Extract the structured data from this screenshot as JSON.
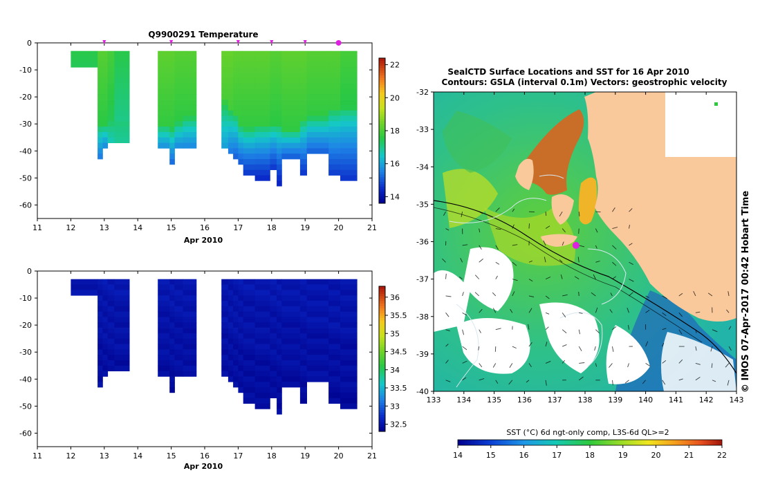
{
  "chart_data": [
    {
      "id": "temperature",
      "type": "heatmap",
      "title": "Q9900291  Temperature",
      "xlabel": "Apr 2010",
      "xlim": [
        11,
        21
      ],
      "ylim": [
        -65,
        0
      ],
      "xticks": [
        "11",
        "12",
        "13",
        "14",
        "15",
        "16",
        "17",
        "18",
        "19",
        "20",
        "21"
      ],
      "yticks": [
        "0",
        "-10",
        "-20",
        "-30",
        "-40",
        "-50",
        "-60"
      ],
      "colorbar": {
        "min": 13.6,
        "max": 22.4,
        "ticks": [
          "14",
          "16",
          "18",
          "20",
          "22"
        ]
      },
      "profile_markers_x": [
        13.0,
        15.0,
        17.0,
        18.0,
        19.0,
        20.0
      ],
      "profiles": [
        {
          "x0": 12.0,
          "x1": 12.8,
          "depth": 9,
          "surface": 17.6,
          "mixed_depth": 9,
          "bottom": 17.6
        },
        {
          "x0": 12.8,
          "x1": 12.95,
          "depth": 43,
          "surface": 18.2,
          "mixed_depth": 30,
          "bottom": 15.4
        },
        {
          "x0": 12.95,
          "x1": 13.1,
          "depth": 39,
          "surface": 18.2,
          "mixed_depth": 30,
          "bottom": 15.6
        },
        {
          "x0": 13.1,
          "x1": 13.3,
          "depth": 37,
          "surface": 18.0,
          "mixed_depth": 28,
          "bottom": 16.6
        },
        {
          "x0": 13.3,
          "x1": 13.75,
          "depth": 37,
          "surface": 17.6,
          "mixed_depth": 28,
          "bottom": 16.9
        },
        {
          "x0": 14.6,
          "x1": 14.95,
          "depth": 39,
          "surface": 18.3,
          "mixed_depth": 30,
          "bottom": 15.7
        },
        {
          "x0": 14.95,
          "x1": 15.1,
          "depth": 45,
          "surface": 18.3,
          "mixed_depth": 31,
          "bottom": 15.2
        },
        {
          "x0": 15.1,
          "x1": 15.35,
          "depth": 39,
          "surface": 18.2,
          "mixed_depth": 29,
          "bottom": 15.6
        },
        {
          "x0": 15.35,
          "x1": 15.75,
          "depth": 39,
          "surface": 18.2,
          "mixed_depth": 27,
          "bottom": 15.6
        },
        {
          "x0": 16.5,
          "x1": 16.7,
          "depth": 39,
          "surface": 18.4,
          "mixed_depth": 21,
          "bottom": 15.9
        },
        {
          "x0": 16.7,
          "x1": 16.85,
          "depth": 41,
          "surface": 18.4,
          "mixed_depth": 24,
          "bottom": 15.4
        },
        {
          "x0": 16.85,
          "x1": 17.0,
          "depth": 43,
          "surface": 18.3,
          "mixed_depth": 26,
          "bottom": 15.1
        },
        {
          "x0": 17.0,
          "x1": 17.15,
          "depth": 45,
          "surface": 18.3,
          "mixed_depth": 30,
          "bottom": 15.0
        },
        {
          "x0": 17.15,
          "x1": 17.5,
          "depth": 49,
          "surface": 18.3,
          "mixed_depth": 31,
          "bottom": 14.6
        },
        {
          "x0": 17.5,
          "x1": 17.95,
          "depth": 51,
          "surface": 18.3,
          "mixed_depth": 30,
          "bottom": 14.4
        },
        {
          "x0": 17.95,
          "x1": 18.15,
          "depth": 47,
          "surface": 18.2,
          "mixed_depth": 30,
          "bottom": 14.6
        },
        {
          "x0": 18.15,
          "x1": 18.3,
          "depth": 53,
          "surface": 18.2,
          "mixed_depth": 30,
          "bottom": 14.3
        },
        {
          "x0": 18.3,
          "x1": 18.85,
          "depth": 43,
          "surface": 18.3,
          "mixed_depth": 32,
          "bottom": 15.0
        },
        {
          "x0": 18.85,
          "x1": 19.05,
          "depth": 49,
          "surface": 18.3,
          "mixed_depth": 28,
          "bottom": 14.6
        },
        {
          "x0": 19.05,
          "x1": 19.7,
          "depth": 41,
          "surface": 18.2,
          "mixed_depth": 27,
          "bottom": 15.1
        },
        {
          "x0": 19.7,
          "x1": 20.05,
          "depth": 49,
          "surface": 18.2,
          "mixed_depth": 24,
          "bottom": 14.7
        },
        {
          "x0": 20.05,
          "x1": 20.55,
          "depth": 51,
          "surface": 18.0,
          "mixed_depth": 24,
          "bottom": 14.6
        }
      ]
    },
    {
      "id": "salinity",
      "type": "heatmap",
      "title": "",
      "xlabel": "Apr 2010",
      "xlim": [
        11,
        21
      ],
      "ylim": [
        -65,
        0
      ],
      "xticks": [
        "11",
        "12",
        "13",
        "14",
        "15",
        "16",
        "17",
        "18",
        "19",
        "20",
        "21"
      ],
      "yticks": [
        "0",
        "-10",
        "-20",
        "-30",
        "-40",
        "-50",
        "-60"
      ],
      "colorbar": {
        "min": 32.3,
        "max": 36.3,
        "ticks": [
          "32.5",
          "33",
          "33.5",
          "34",
          "34.5",
          "35",
          "35.5",
          "36"
        ]
      },
      "profiles_same_as": "temperature",
      "value_range": [
        32.3,
        32.6
      ]
    },
    {
      "id": "sst_map",
      "type": "heatmap",
      "title": "SealCTD Surface Locations and SST for 16 Apr 2010",
      "subtitle": "Contours: GSLA (interval 0.1m) Vectors: geostrophic velocity",
      "xlim": [
        133,
        143
      ],
      "ylim": [
        -40,
        -32
      ],
      "xticks": [
        "133",
        "134",
        "135",
        "136",
        "137",
        "138",
        "139",
        "140",
        "141",
        "142",
        "143"
      ],
      "yticks": [
        "-32",
        "-33",
        "-34",
        "-35",
        "-36",
        "-37",
        "-38",
        "-39",
        "-40"
      ],
      "colorbar": {
        "label": "SST (°C) 6d ngt-only comp, L3S-6d QL>=2",
        "min": 14,
        "max": 22,
        "ticks": [
          "14",
          "15",
          "16",
          "17",
          "18",
          "19",
          "20",
          "21",
          "22"
        ]
      },
      "seal_location": {
        "lon": 137.7,
        "lat": -36.1
      },
      "credit": "© IMOS 07-Apr-2017 00:42 Hobart Time"
    }
  ],
  "colors": {
    "land": "#f9c89b",
    "marker": "#e020e0",
    "contour": "#d8e8f0"
  }
}
